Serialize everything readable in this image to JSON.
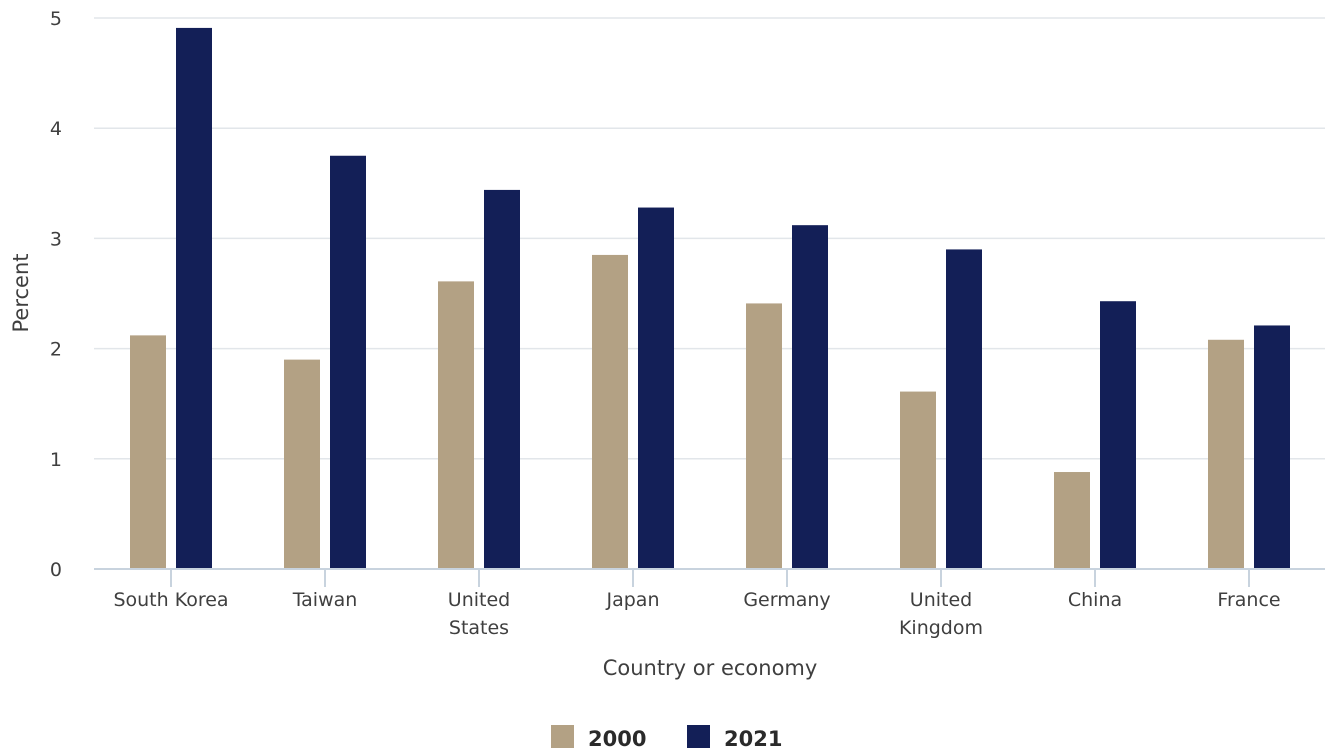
{
  "chart_data": {
    "type": "bar",
    "title": "",
    "xlabel": "Country or economy",
    "ylabel": "Percent",
    "ylim": [
      0,
      5
    ],
    "yticks": [
      0,
      1,
      2,
      3,
      4,
      5
    ],
    "grid": true,
    "legend_position": "bottom-center",
    "categories": [
      [
        "South Korea"
      ],
      [
        "Taiwan"
      ],
      [
        "United",
        "States"
      ],
      [
        "Japan"
      ],
      [
        "Germany"
      ],
      [
        "United",
        "Kingdom"
      ],
      [
        "China"
      ],
      [
        "France"
      ]
    ],
    "series": [
      {
        "name": "2000",
        "color": "#b3a184",
        "values": [
          2.12,
          1.9,
          2.61,
          2.85,
          2.41,
          1.61,
          0.88,
          2.08
        ]
      },
      {
        "name": "2021",
        "color": "#131f57",
        "values": [
          4.91,
          3.75,
          3.44,
          3.28,
          3.12,
          2.9,
          2.43,
          2.21
        ]
      }
    ]
  }
}
